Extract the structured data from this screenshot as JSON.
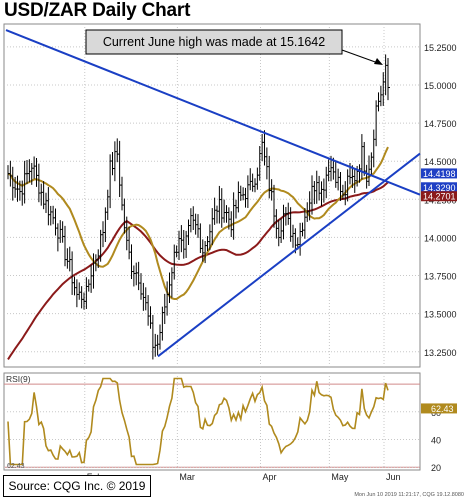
{
  "title": "USD/ZAR Daily Chart",
  "source": "Source: CQG Inc. © 2019",
  "chart_data": [
    {
      "type": "candlestick",
      "annotation": "Current June high was made at 15.1642",
      "y_ticks": [
        "15.2500",
        "15.0000",
        "14.7500",
        "14.5000",
        "14.2500",
        "14.0000",
        "13.7500",
        "13.5000",
        "13.2500"
      ],
      "ylim": [
        13.15,
        15.4
      ],
      "x_ticks": [
        "Feb",
        "Mar",
        "Apr",
        "May",
        "Jun"
      ],
      "price_tags": [
        {
          "label": "14.4198",
          "value": 14.4198,
          "color": "#1e3fc4"
        },
        {
          "label": "14.3290",
          "value": 14.329,
          "color": "#1e3fc4"
        },
        {
          "label": "14.2701",
          "value": 14.2701,
          "color": "#8b1a1a"
        }
      ],
      "ma_fast_color": "#b08a1e",
      "ma_slow_color": "#8b1a1a",
      "trendline_color": "#1a3fc4",
      "grid": true,
      "footer_text": "Mon Jun 10 2019 11:21:17, CQG 19.12.8080"
    },
    {
      "type": "line",
      "label": "RSI(9)",
      "y_ticks": [
        "60",
        "40",
        "20"
      ],
      "ylim": [
        18,
        88
      ],
      "current_value_label": "62.43",
      "current_value": 62.43,
      "left_marker": "62.43",
      "line_color": "#b08a1e",
      "levels": [
        80,
        20
      ],
      "level_color": "#d08a8a"
    }
  ]
}
